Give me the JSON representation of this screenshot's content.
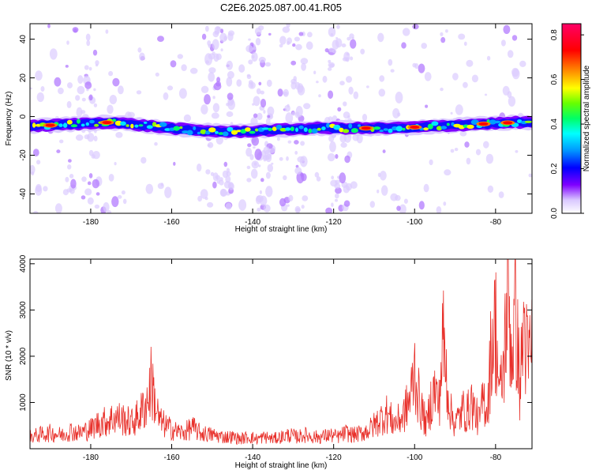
{
  "figure": {
    "title": "C2E6.2025.087.00.41.R05"
  },
  "chart_data": [
    {
      "type": "heatmap",
      "title": "",
      "xlabel": "Height of straight line (km)",
      "ylabel": "Frequency (Hz)",
      "xlim": [
        -195,
        -71
      ],
      "ylim": [
        -50,
        48
      ],
      "xticks": [
        -180,
        -160,
        -140,
        -120,
        -100,
        -80
      ],
      "yticks": [
        -40,
        -20,
        0,
        20,
        40
      ],
      "colorbar": {
        "label": "Normalized spectral amplitude",
        "range": [
          0,
          0.85
        ],
        "ticks": [
          0.0,
          0.2,
          0.4,
          0.6,
          0.8
        ],
        "colormap": [
          "#ffffff",
          "#d9c8ff",
          "#7f00ff",
          "#0000ff",
          "#0096ff",
          "#00ffff",
          "#00ff66",
          "#66ff00",
          "#ffff00",
          "#ff8000",
          "#ff0000",
          "#ff0080",
          "#ff0066"
        ]
      },
      "ridge_frequency_hz": [
        {
          "height_km": -195,
          "freq": -5
        },
        {
          "height_km": -185,
          "freq": -4
        },
        {
          "height_km": -175,
          "freq": -3
        },
        {
          "height_km": -165,
          "freq": -5
        },
        {
          "height_km": -155,
          "freq": -7
        },
        {
          "height_km": -145,
          "freq": -8
        },
        {
          "height_km": -135,
          "freq": -7
        },
        {
          "height_km": -125,
          "freq": -6
        },
        {
          "height_km": -115,
          "freq": -6
        },
        {
          "height_km": -105,
          "freq": -6
        },
        {
          "height_km": -95,
          "freq": -5
        },
        {
          "height_km": -85,
          "freq": -4
        },
        {
          "height_km": -75,
          "freq": -3
        },
        {
          "height_km": -71,
          "freq": -3
        }
      ],
      "hotspots": [
        {
          "height_km": -190,
          "amplitude": 0.75
        },
        {
          "height_km": -176,
          "amplitude": 0.8
        },
        {
          "height_km": -112,
          "amplitude": 0.8
        },
        {
          "height_km": -100,
          "amplitude": 0.85
        },
        {
          "height_km": -83,
          "amplitude": 0.75
        },
        {
          "height_km": -77,
          "amplitude": 0.75
        }
      ]
    },
    {
      "type": "line",
      "title": "",
      "xlabel": "Height of straight line (km)",
      "ylabel": "SNR (10 * v/v)",
      "xlim": [
        -195,
        -71
      ],
      "ylim": [
        0,
        4100
      ],
      "xticks": [
        -180,
        -160,
        -140,
        -120,
        -100,
        -80
      ],
      "yticks": [
        1000,
        2000,
        3000,
        4000
      ],
      "color": "#e8302a",
      "series": [
        {
          "x": [
            -195,
            -193,
            -190,
            -187,
            -185,
            -183,
            -180,
            -178,
            -176,
            -174,
            -172,
            -170,
            -168,
            -166,
            -165,
            -164,
            -163,
            -161,
            -159,
            -157,
            -155,
            -153,
            -150,
            -147,
            -145,
            -143,
            -141,
            -139,
            -137,
            -135,
            -133,
            -131,
            -129,
            -127,
            -125,
            -123,
            -121,
            -119,
            -117,
            -115,
            -113,
            -111,
            -109,
            -107,
            -105,
            -103,
            -101,
            -100,
            -99,
            -98,
            -97,
            -96,
            -95,
            -94,
            -93,
            -92,
            -91,
            -90,
            -89,
            -88,
            -87,
            -86,
            -85,
            -84,
            -83,
            -82,
            -81,
            -80,
            -79,
            -78,
            -77,
            -76,
            -75,
            -74,
            -73,
            -72,
            -71
          ],
          "y": [
            300,
            350,
            400,
            350,
            450,
            400,
            500,
            650,
            700,
            800,
            750,
            650,
            850,
            1200,
            1750,
            1100,
            700,
            550,
            450,
            400,
            550,
            400,
            350,
            300,
            300,
            250,
            300,
            250,
            300,
            250,
            300,
            350,
            300,
            350,
            300,
            300,
            350,
            300,
            400,
            350,
            400,
            500,
            700,
            900,
            650,
            800,
            1300,
            2050,
            1300,
            900,
            600,
            1200,
            1500,
            1100,
            2800,
            1700,
            900,
            650,
            800,
            1000,
            900,
            1200,
            900,
            700,
            1300,
            1000,
            2700,
            3200,
            1300,
            2100,
            4050,
            2400,
            3500,
            1500,
            3200,
            2100,
            2800
          ]
        }
      ]
    }
  ]
}
